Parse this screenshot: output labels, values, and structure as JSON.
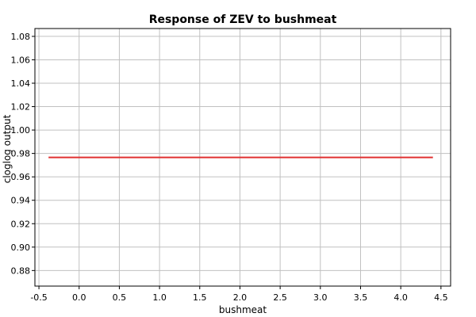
{
  "chart_data": {
    "type": "line",
    "title": "Response of ZEV to bushmeat",
    "xlabel": "bushmeat",
    "ylabel": "cloglog output",
    "xlim": [
      -0.55,
      4.62
    ],
    "ylim": [
      0.8667,
      1.0867
    ],
    "x_ticks": [
      "-0.5",
      "0.0",
      "0.5",
      "1.0",
      "1.5",
      "2.0",
      "2.5",
      "3.0",
      "3.5",
      "4.0",
      "4.5"
    ],
    "y_ticks": [
      "0.88",
      "0.90",
      "0.92",
      "0.94",
      "0.96",
      "0.98",
      "1.00",
      "1.02",
      "1.04",
      "1.06",
      "1.08"
    ],
    "grid": true,
    "series": [
      {
        "color": "#e03030",
        "x": [
          -0.38,
          4.4
        ],
        "y": [
          0.9766,
          0.9766
        ]
      }
    ]
  }
}
